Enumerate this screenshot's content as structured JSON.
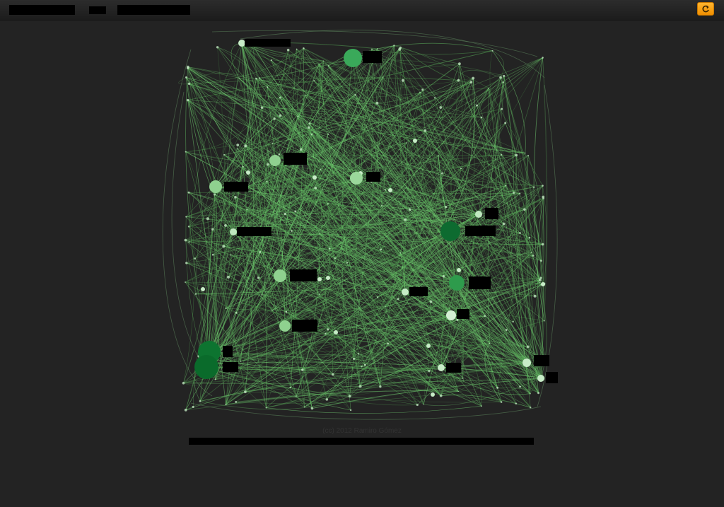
{
  "footer": {
    "credit": "(cc) 2012 Ramiro Gómez"
  },
  "colors": {
    "background": "#232323",
    "link": "#8fcf8f",
    "accent": "#f5a623"
  },
  "toolbar": {
    "refresh_icon": "refresh-icon"
  },
  "graph": {
    "nodes": [
      {
        "id": 0,
        "r": 5,
        "color": "#c7ecc7"
      },
      {
        "id": 1,
        "r": 13,
        "color": "#3aa95a"
      },
      {
        "id": 2,
        "r": 8,
        "color": "#8fd18f"
      },
      {
        "id": 3,
        "r": 9,
        "color": "#8fd18f"
      },
      {
        "id": 4,
        "r": 9,
        "color": "#9bd89b"
      },
      {
        "id": 5,
        "r": 5,
        "color": "#bfe8bf"
      },
      {
        "id": 6,
        "r": 5,
        "color": "#bfe8bf"
      },
      {
        "id": 7,
        "r": 14,
        "color": "#0d6b30"
      },
      {
        "id": 8,
        "r": 9,
        "color": "#8fd18f"
      },
      {
        "id": 9,
        "r": 11,
        "color": "#2e9b4c"
      },
      {
        "id": 10,
        "r": 5,
        "color": "#c7ecc7"
      },
      {
        "id": 11,
        "r": 7,
        "color": "#d4f0d4"
      },
      {
        "id": 12,
        "r": 8,
        "color": "#8fd18f"
      },
      {
        "id": 13,
        "r": 16,
        "color": "#0d7430"
      },
      {
        "id": 14,
        "r": 17,
        "color": "#0a6b2b"
      },
      {
        "id": 15,
        "r": 5,
        "color": "#c7ecc7"
      },
      {
        "id": 16,
        "r": 6,
        "color": "#c7ecc7"
      },
      {
        "id": 17,
        "r": 5,
        "color": "#c7ecc7"
      }
    ]
  }
}
